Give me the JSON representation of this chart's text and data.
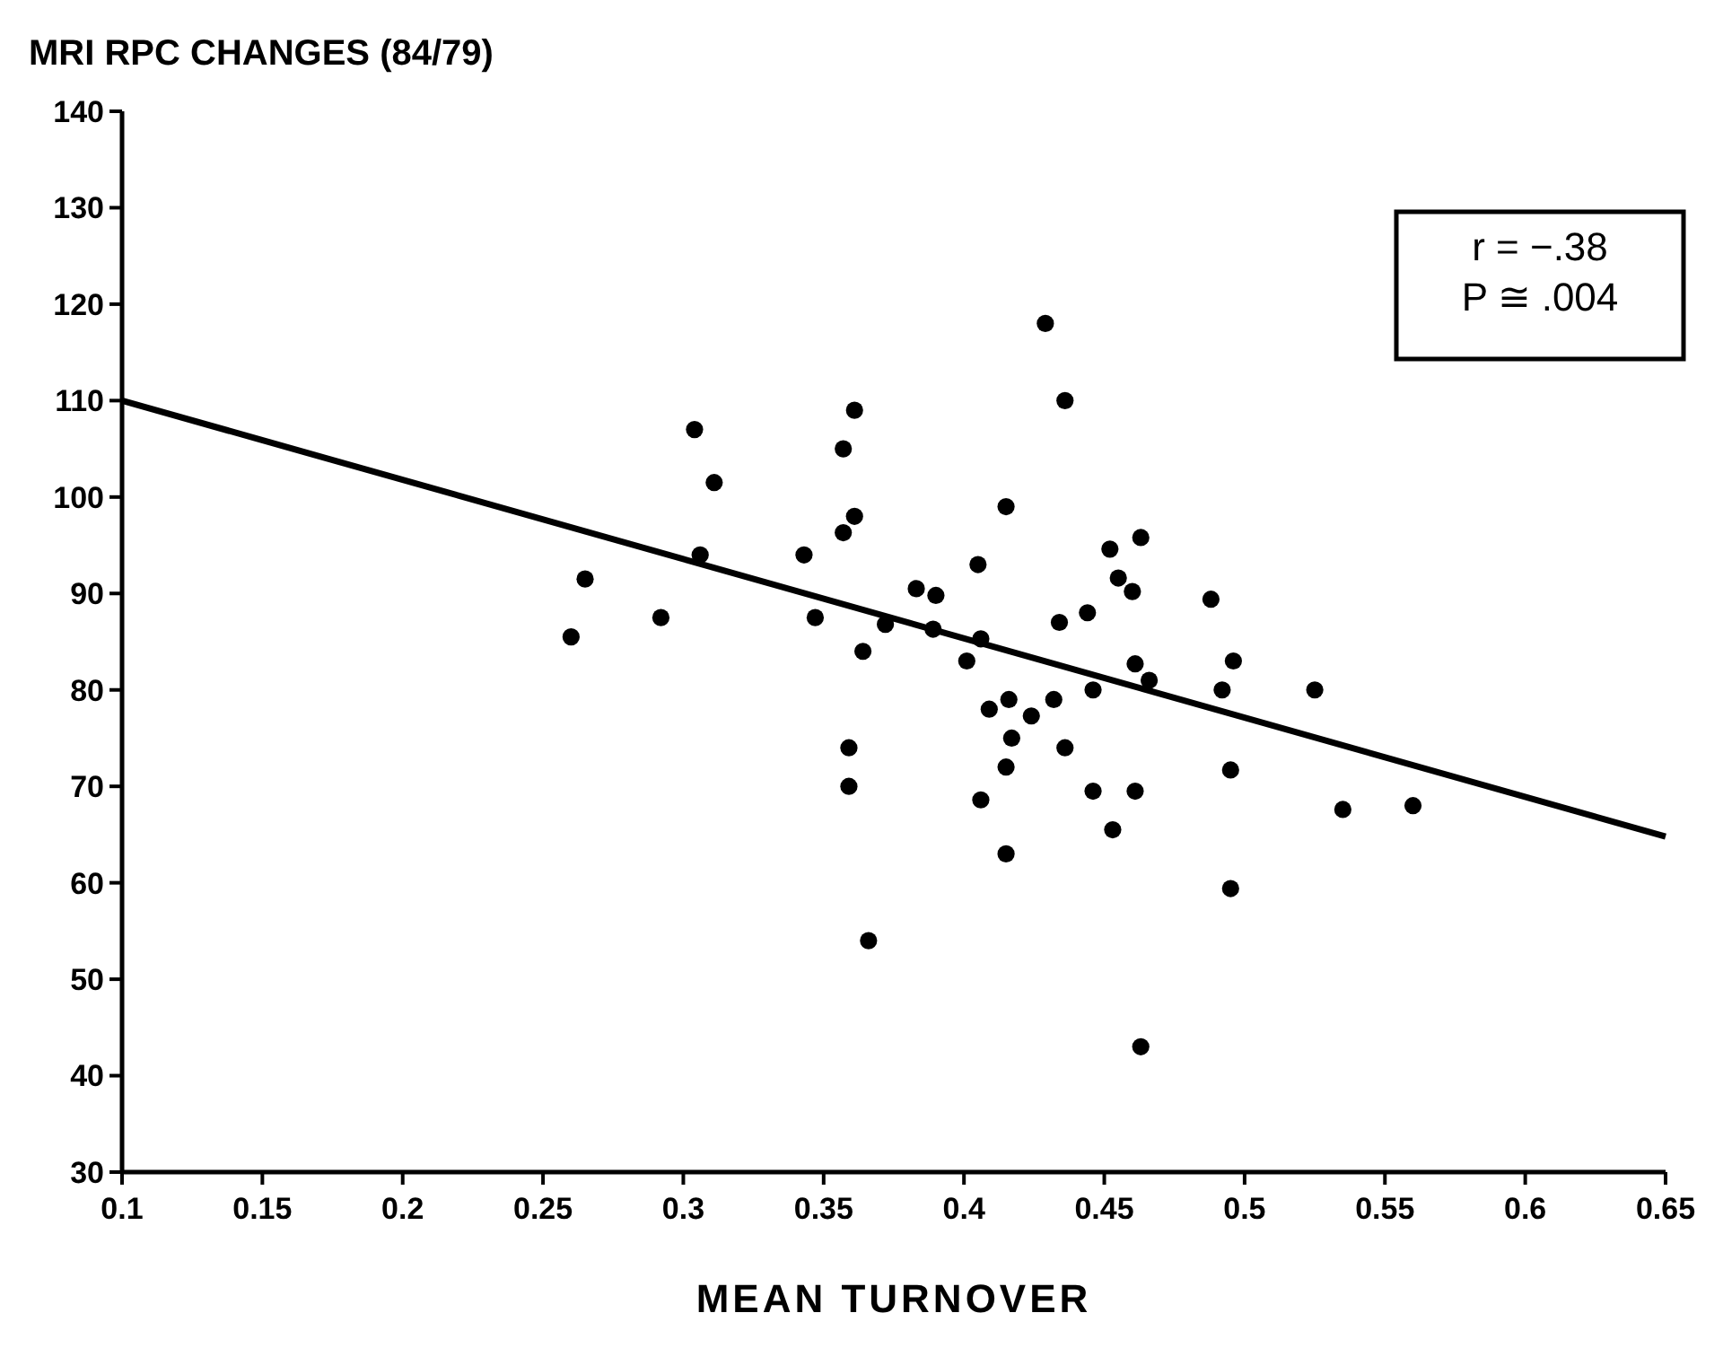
{
  "chart_data": {
    "type": "scatter",
    "title": "MRI RPC CHANGES (84/79)",
    "xlabel": "MEAN TURNOVER",
    "xlim": [
      0.1,
      0.65
    ],
    "ylim": [
      30,
      140
    ],
    "xticks": [
      0.1,
      0.15,
      0.2,
      0.25,
      0.3,
      0.35,
      0.4,
      0.45,
      0.5,
      0.55,
      0.6,
      0.65
    ],
    "yticks": [
      30,
      40,
      50,
      60,
      70,
      80,
      90,
      100,
      110,
      120,
      130,
      140
    ],
    "grid": false,
    "annotations": [
      "r = −.38",
      "P ≅ .004"
    ],
    "series": [
      {
        "color": "#000000",
        "marker": "circle",
        "x": [
          0.26,
          0.265,
          0.292,
          0.304,
          0.306,
          0.311,
          0.343,
          0.347,
          0.357,
          0.361,
          0.361,
          0.357,
          0.364,
          0.359,
          0.359,
          0.366,
          0.372,
          0.383,
          0.39,
          0.389,
          0.401,
          0.405,
          0.406,
          0.409,
          0.406,
          0.415,
          0.416,
          0.417,
          0.415,
          0.415,
          0.424,
          0.432,
          0.429,
          0.434,
          0.436,
          0.436,
          0.444,
          0.446,
          0.446,
          0.452,
          0.455,
          0.453,
          0.46,
          0.463,
          0.461,
          0.466,
          0.461,
          0.463,
          0.488,
          0.492,
          0.496,
          0.495,
          0.495,
          0.525,
          0.535,
          0.56
        ],
        "values": [
          85.5,
          91.5,
          87.5,
          107,
          94,
          101.5,
          94,
          87.5,
          105,
          109,
          98,
          96.3,
          84,
          74,
          70,
          54,
          86.8,
          90.5,
          89.8,
          86.3,
          83,
          93,
          85.3,
          78,
          68.6,
          99,
          79,
          75,
          72,
          63,
          77.3,
          79,
          118,
          87,
          110,
          74,
          88,
          80,
          69.5,
          94.6,
          91.6,
          65.5,
          90.2,
          95.8,
          82.7,
          81,
          69.5,
          43,
          89.4,
          80,
          83,
          71.7,
          59.4,
          80,
          67.6,
          68
        ]
      },
      {
        "type": "line",
        "color": "#000000",
        "line_style": "solid",
        "marker": "none",
        "x": [
          0.1,
          0.65
        ],
        "values": [
          110,
          64.8
        ]
      }
    ]
  }
}
